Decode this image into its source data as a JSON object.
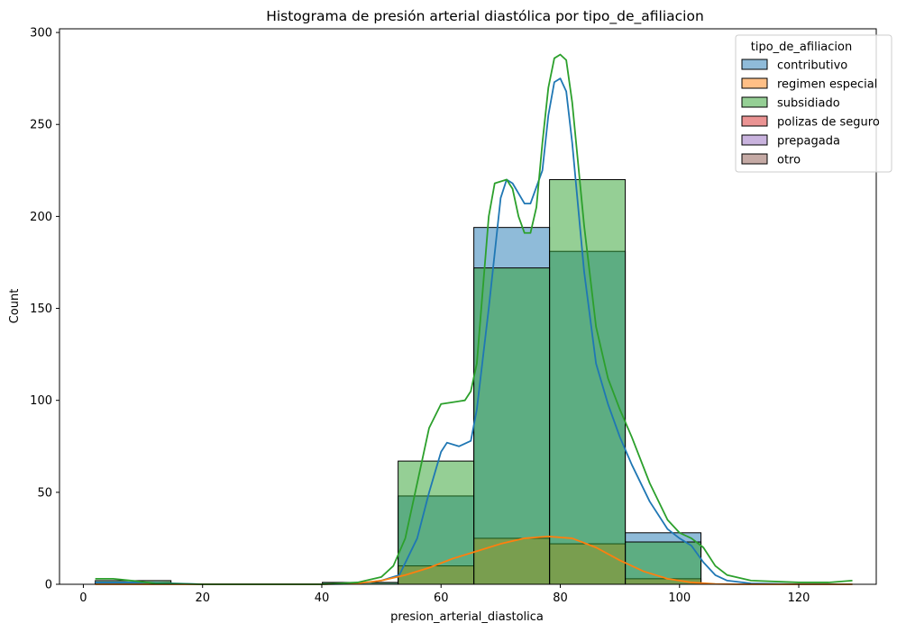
{
  "chart_data": {
    "type": "histogram",
    "title": "Histograma de presión arterial diastólica por tipo_de_afiliacion",
    "xlabel": "presion_arterial_diastolica",
    "ylabel": "Count",
    "xlim": [
      -4,
      133
    ],
    "ylim": [
      0,
      302
    ],
    "x_ticks": [
      0,
      20,
      40,
      60,
      80,
      100,
      120
    ],
    "y_ticks": [
      0,
      50,
      100,
      150,
      200,
      250,
      300
    ],
    "bin_edges": [
      2,
      14.7,
      27.4,
      40.1,
      52.8,
      65.5,
      78.2,
      90.9,
      103.6,
      116.3,
      129
    ],
    "legend": {
      "title": "tipo_de_afiliacion",
      "position": "top-right",
      "entries": [
        "contributivo",
        "regimen especial",
        "subsidiado",
        "polizas de seguro",
        "prepagada",
        "otro"
      ]
    },
    "grid": false,
    "series": [
      {
        "name": "contributivo",
        "color": "#1f77b4",
        "counts": [
          1,
          0,
          0,
          1,
          48,
          194,
          181,
          28,
          0,
          0
        ]
      },
      {
        "name": "regimen especial",
        "color": "#ff7f0e",
        "counts": [
          0,
          0,
          0,
          0,
          10,
          25,
          22,
          3,
          0,
          0
        ]
      },
      {
        "name": "subsidiado",
        "color": "#2ca02c",
        "counts": [
          2,
          0,
          0,
          1,
          67,
          172,
          220,
          23,
          0,
          0
        ]
      },
      {
        "name": "polizas de seguro",
        "color": "#d62728",
        "counts": [
          0,
          0,
          0,
          0,
          0,
          0,
          0,
          0,
          0,
          0
        ]
      },
      {
        "name": "prepagada",
        "color": "#9467bd",
        "counts": [
          0,
          0,
          0,
          0,
          0,
          0,
          0,
          0,
          0,
          0
        ]
      },
      {
        "name": "otro",
        "color": "#8c564b",
        "counts": [
          0,
          0,
          0,
          0,
          0,
          0,
          0,
          0,
          0,
          0
        ]
      }
    ],
    "kde": [
      {
        "name": "contributivo",
        "color": "#1f77b4",
        "points": [
          [
            2,
            1
          ],
          [
            10,
            1
          ],
          [
            20,
            0
          ],
          [
            30,
            0
          ],
          [
            40,
            0
          ],
          [
            46,
            0.3
          ],
          [
            50,
            2
          ],
          [
            53,
            5
          ],
          [
            56,
            25
          ],
          [
            58,
            50
          ],
          [
            60,
            72
          ],
          [
            61,
            77
          ],
          [
            63,
            75
          ],
          [
            65,
            78
          ],
          [
            66,
            95
          ],
          [
            68,
            150
          ],
          [
            70,
            210
          ],
          [
            71,
            220
          ],
          [
            72,
            218
          ],
          [
            74,
            207
          ],
          [
            75,
            207
          ],
          [
            77,
            225
          ],
          [
            78,
            255
          ],
          [
            79,
            273
          ],
          [
            80,
            275
          ],
          [
            81,
            268
          ],
          [
            82,
            240
          ],
          [
            84,
            170
          ],
          [
            86,
            120
          ],
          [
            88,
            98
          ],
          [
            90,
            80
          ],
          [
            92,
            65
          ],
          [
            95,
            45
          ],
          [
            98,
            30
          ],
          [
            100,
            25
          ],
          [
            102,
            21
          ],
          [
            104,
            12
          ],
          [
            106,
            5
          ],
          [
            108,
            2
          ],
          [
            112,
            0.5
          ],
          [
            120,
            0
          ],
          [
            129,
            0
          ]
        ]
      },
      {
        "name": "regimen especial",
        "color": "#ff7f0e",
        "points": [
          [
            2,
            0
          ],
          [
            40,
            0
          ],
          [
            46,
            0.5
          ],
          [
            50,
            2
          ],
          [
            54,
            5
          ],
          [
            58,
            9
          ],
          [
            62,
            14
          ],
          [
            66,
            18
          ],
          [
            70,
            22
          ],
          [
            74,
            25
          ],
          [
            78,
            26
          ],
          [
            82,
            25
          ],
          [
            86,
            20
          ],
          [
            90,
            13
          ],
          [
            94,
            7
          ],
          [
            98,
            3
          ],
          [
            102,
            1
          ],
          [
            106,
            0.2
          ],
          [
            110,
            0
          ],
          [
            129,
            0
          ]
        ]
      },
      {
        "name": "subsidiado",
        "color": "#2ca02c",
        "points": [
          [
            2,
            3
          ],
          [
            5,
            3
          ],
          [
            8,
            2
          ],
          [
            12,
            0.5
          ],
          [
            20,
            0
          ],
          [
            30,
            0
          ],
          [
            40,
            0
          ],
          [
            46,
            1
          ],
          [
            50,
            4
          ],
          [
            52,
            10
          ],
          [
            54,
            25
          ],
          [
            56,
            55
          ],
          [
            58,
            85
          ],
          [
            60,
            98
          ],
          [
            62,
            99
          ],
          [
            64,
            100
          ],
          [
            65,
            105
          ],
          [
            66,
            120
          ],
          [
            67,
            160
          ],
          [
            68,
            200
          ],
          [
            69,
            218
          ],
          [
            71,
            220
          ],
          [
            72,
            215
          ],
          [
            73,
            200
          ],
          [
            74,
            191
          ],
          [
            75,
            191
          ],
          [
            76,
            205
          ],
          [
            77,
            240
          ],
          [
            78,
            270
          ],
          [
            79,
            286
          ],
          [
            80,
            288
          ],
          [
            81,
            285
          ],
          [
            82,
            262
          ],
          [
            84,
            195
          ],
          [
            86,
            140
          ],
          [
            88,
            112
          ],
          [
            90,
            95
          ],
          [
            92,
            80
          ],
          [
            95,
            55
          ],
          [
            98,
            35
          ],
          [
            100,
            28
          ],
          [
            102,
            25
          ],
          [
            104,
            20
          ],
          [
            106,
            10
          ],
          [
            108,
            5
          ],
          [
            112,
            2
          ],
          [
            120,
            1
          ],
          [
            125,
            1
          ],
          [
            129,
            2
          ]
        ]
      }
    ]
  }
}
